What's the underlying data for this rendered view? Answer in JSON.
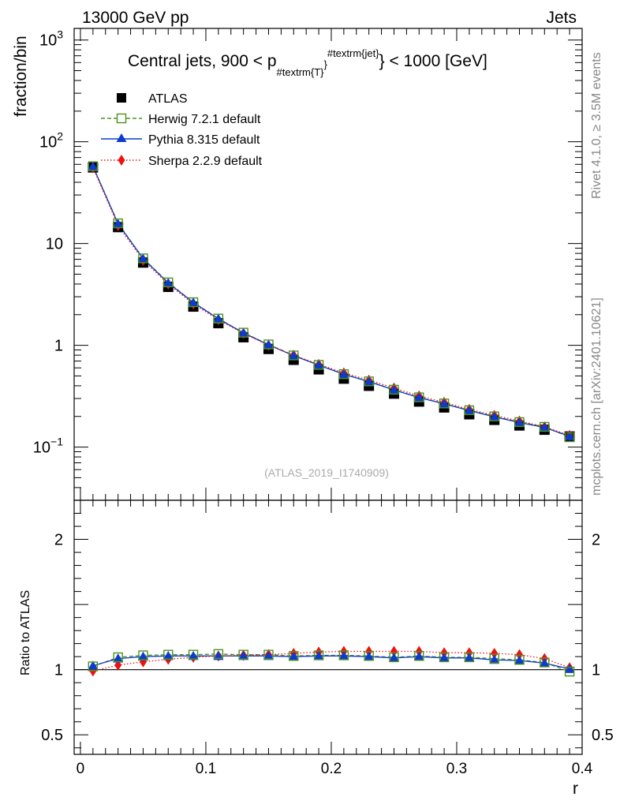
{
  "header": {
    "energy_label": "13000 GeV pp",
    "process_label": "Jets"
  },
  "side_labels": {
    "rivet": "Rivet 4.1.0, ≥ 3.5M events",
    "mcplots": "mcplots.cern.ch [arXiv:2401.10621]"
  },
  "analysis_id": "(ATLAS_2019_I1740909)",
  "chart_data": {
    "type": "line",
    "title": "Central jets, 900 < p_{#textrm{T}}^{#textrm{jet}} < 1000 [GeV]",
    "title_parts": {
      "a": "Central jets, 900 < p",
      "sub": "#textrm{T}",
      "sup": "#textrm{jet}",
      "b": "} < 1000 [GeV]"
    },
    "xlabel": "r",
    "ylabel": "fraction/bin",
    "ratio_ylabel": "Ratio to ATLAS",
    "x": [
      0.01,
      0.03,
      0.05,
      0.07,
      0.09,
      0.11,
      0.13,
      0.15,
      0.17,
      0.19,
      0.21,
      0.23,
      0.25,
      0.27,
      0.29,
      0.31,
      0.33,
      0.35,
      0.37,
      0.39
    ],
    "xlim": [
      -0.005,
      0.4
    ],
    "ylim": [
      0.03,
      1300
    ],
    "ratio_ylim": [
      0.35,
      2.3
    ],
    "x_ticks": [
      {
        "value": 0,
        "label": "0"
      },
      {
        "value": 0.1,
        "label": "0.1"
      },
      {
        "value": 0.2,
        "label": "0.2"
      },
      {
        "value": 0.3,
        "label": "0.3"
      },
      {
        "value": 0.4,
        "label": "0.4"
      }
    ],
    "y_ticks": [
      {
        "value": 0.1,
        "label": "10",
        "exp": "−1"
      },
      {
        "value": 1,
        "label": "1",
        "exp": ""
      },
      {
        "value": 10,
        "label": "10",
        "exp": ""
      },
      {
        "value": 100,
        "label": "10",
        "exp": "2"
      },
      {
        "value": 1000,
        "label": "10",
        "exp": "3"
      }
    ],
    "ratio_ticks": [
      {
        "value": 0.5,
        "label": "0.5"
      },
      {
        "value": 1,
        "label": "1"
      },
      {
        "value": 2,
        "label": "2"
      }
    ],
    "series": [
      {
        "name": "ATLAS",
        "marker": "square-filled",
        "color": "#000000",
        "values": [
          56,
          14.5,
          6.5,
          3.75,
          2.4,
          1.65,
          1.2,
          0.92,
          0.72,
          0.58,
          0.47,
          0.4,
          0.335,
          0.28,
          0.245,
          0.21,
          0.185,
          0.163,
          0.148,
          0.127
        ],
        "ratio": [
          1,
          1,
          1,
          1,
          1,
          1,
          1,
          1,
          1,
          1,
          1,
          1,
          1,
          1,
          1,
          1,
          1,
          1,
          1,
          1
        ]
      },
      {
        "name": "Herwig 7.2.1 default",
        "marker": "square-open",
        "color": "#4d9221",
        "line": "dashed",
        "values": [
          57.5,
          15.8,
          7.15,
          4.15,
          2.65,
          1.83,
          1.33,
          1.02,
          0.795,
          0.642,
          0.52,
          0.442,
          0.366,
          0.308,
          0.268,
          0.23,
          0.2,
          0.176,
          0.158,
          0.125
        ],
        "ratio": [
          1.025,
          1.095,
          1.11,
          1.115,
          1.115,
          1.12,
          1.115,
          1.115,
          1.105,
          1.11,
          1.11,
          1.105,
          1.095,
          1.105,
          1.095,
          1.095,
          1.085,
          1.075,
          1.055,
          0.985
        ]
      },
      {
        "name": "Pythia 8.315 default",
        "marker": "triangle-filled",
        "color": "#0d3bcc",
        "line": "solid",
        "values": [
          57.2,
          15.6,
          7.1,
          4.1,
          2.63,
          1.82,
          1.32,
          1.01,
          0.79,
          0.638,
          0.518,
          0.44,
          0.364,
          0.306,
          0.266,
          0.228,
          0.198,
          0.174,
          0.156,
          0.128
        ],
        "ratio": [
          1.03,
          1.085,
          1.1,
          1.105,
          1.105,
          1.105,
          1.105,
          1.105,
          1.1,
          1.105,
          1.105,
          1.1,
          1.09,
          1.1,
          1.09,
          1.09,
          1.075,
          1.07,
          1.05,
          1.005
        ]
      },
      {
        "name": "Sherpa 2.2.9 default",
        "marker": "diamond-filled",
        "color": "#ee1111",
        "line": "dotted",
        "values": [
          55.5,
          15.0,
          6.85,
          4.0,
          2.55,
          1.78,
          1.31,
          1.0,
          0.8,
          0.65,
          0.535,
          0.455,
          0.38,
          0.318,
          0.275,
          0.235,
          0.205,
          0.18,
          0.158,
          0.13
        ],
        "ratio": [
          0.99,
          1.035,
          1.06,
          1.08,
          1.095,
          1.105,
          1.11,
          1.115,
          1.125,
          1.135,
          1.14,
          1.14,
          1.14,
          1.14,
          1.13,
          1.13,
          1.125,
          1.115,
          1.085,
          1.015
        ]
      }
    ]
  }
}
